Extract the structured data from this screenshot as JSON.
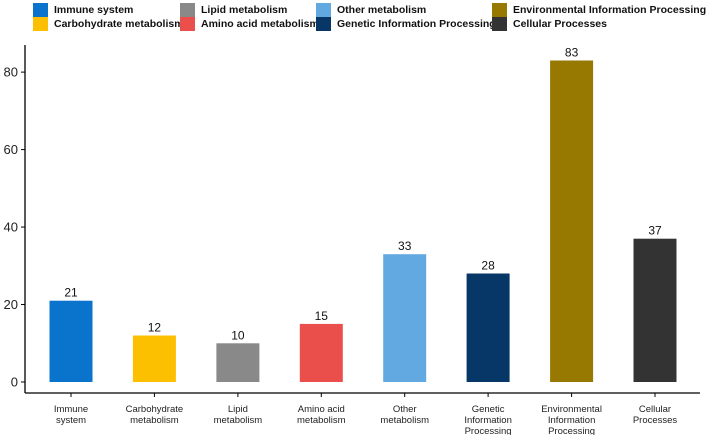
{
  "chart_data": {
    "type": "bar",
    "title": "",
    "xlabel": "",
    "ylabel": "",
    "ylim": [
      0,
      87
    ],
    "yticks": [
      0,
      20,
      40,
      60,
      80
    ],
    "grid": false,
    "legend_position": "top",
    "categories": [
      [
        "Immune",
        "system"
      ],
      [
        "Carbohydrate",
        "metabolism"
      ],
      [
        "Lipid",
        "metabolism"
      ],
      [
        "Amino acid",
        "metabolism"
      ],
      [
        "Other",
        "metabolism"
      ],
      [
        "Genetic",
        "Information",
        "Processing"
      ],
      [
        "Environmental",
        "Information",
        "Processing"
      ],
      [
        "Cellular",
        "Processes"
      ]
    ],
    "values": [
      21,
      12,
      10,
      15,
      33,
      28,
      83,
      37
    ],
    "series_names": [
      "Immune system",
      "Carbohydrate metabolism",
      "Lipid metabolism",
      "Amino acid metabolism",
      "Other metabolism",
      "Genetic Information Processing",
      "Environmental Information Processing",
      "Cellular Processes"
    ],
    "colors": [
      "#0a74cc",
      "#fcc001",
      "#898989",
      "#eb4f4b",
      "#62a9e1",
      "#063766",
      "#977800",
      "#333333"
    ]
  }
}
